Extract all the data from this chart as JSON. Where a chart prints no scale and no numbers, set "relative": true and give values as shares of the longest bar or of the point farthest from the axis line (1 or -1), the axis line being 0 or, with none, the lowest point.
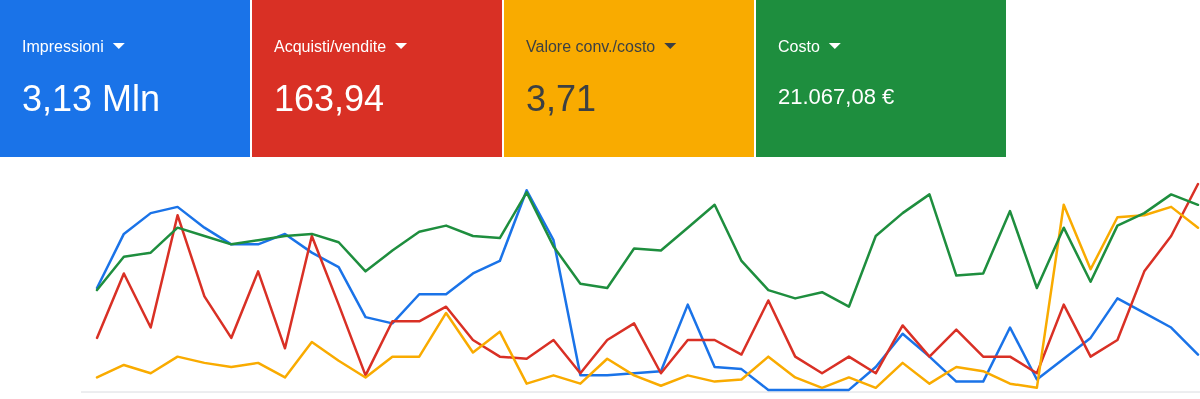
{
  "chart_data": [
    {
      "type": "other",
      "categories": [
        "Impressioni",
        "Acquisti/vendite",
        "Valore conv./costo",
        "Costo"
      ],
      "annotations": [
        "3,13 Mln",
        "163,94",
        "3,71",
        "21.067,08 €"
      ],
      "colors": [
        "#1a73e8",
        "#d93025",
        "#f9ab00",
        "#1e8e3e"
      ]
    },
    {
      "type": "line",
      "relative": true,
      "line_style": "solid",
      "marker": "none",
      "categories": [
        null,
        null,
        null,
        null,
        null,
        null,
        null,
        null,
        null,
        null,
        null,
        null,
        null,
        null,
        null,
        null,
        null,
        null,
        null,
        null,
        null,
        null,
        null,
        null,
        null,
        null,
        null,
        null,
        null,
        null,
        null,
        null,
        null,
        null,
        null,
        null,
        null,
        null,
        null,
        null,
        null,
        null
      ],
      "series": [
        {
          "color": "#1a73e8",
          "values": [
            0.5,
            0.76,
            0.86,
            0.89,
            0.79,
            0.71,
            0.71,
            0.76,
            0.67,
            0.6,
            0.36,
            0.33,
            0.47,
            0.47,
            0.57,
            0.63,
            0.97,
            0.73,
            0.08,
            0.08,
            0.09,
            0.1,
            0.42,
            0.12,
            0.11,
            0.01,
            0.01,
            0.01,
            0.01,
            0.12,
            0.28,
            0.17,
            0.05,
            0.05,
            0.31,
            0.06,
            0.16,
            0.26,
            0.45,
            0.38,
            0.31,
            0.18
          ]
        },
        {
          "color": "#d93025",
          "values": [
            0.26,
            0.57,
            0.31,
            0.85,
            0.46,
            0.26,
            0.58,
            0.21,
            0.75,
            0.42,
            0.08,
            0.34,
            0.34,
            0.41,
            0.25,
            0.17,
            0.16,
            0.25,
            0.09,
            0.25,
            0.33,
            0.09,
            0.25,
            0.25,
            0.18,
            0.44,
            0.17,
            0.09,
            0.17,
            0.09,
            0.32,
            0.17,
            0.3,
            0.17,
            0.17,
            0.09,
            0.42,
            0.17,
            0.25,
            0.58,
            0.75,
            1
          ]
        },
        {
          "color": "#f9ab00",
          "values": [
            0.07,
            0.13,
            0.09,
            0.17,
            0.14,
            0.12,
            0.14,
            0.07,
            0.24,
            0.15,
            0.07,
            0.17,
            0.17,
            0.38,
            0.19,
            0.29,
            0.04,
            0.08,
            0.04,
            0.16,
            0.08,
            0.03,
            0.08,
            0.05,
            0.06,
            0.17,
            0.07,
            0.02,
            0.07,
            0.02,
            0.14,
            0.04,
            0.12,
            0.1,
            0.04,
            0.02,
            0.9,
            0.59,
            0.84,
            0.85,
            0.89,
            0.79
          ]
        },
        {
          "color": "#1e8e3e",
          "values": [
            0.49,
            0.65,
            0.67,
            0.79,
            0.75,
            0.71,
            0.73,
            0.75,
            0.76,
            0.72,
            0.58,
            0.68,
            0.77,
            0.8,
            0.75,
            0.74,
            0.96,
            0.7,
            0.52,
            0.5,
            0.69,
            0.68,
            0.79,
            0.9,
            0.63,
            0.49,
            0.45,
            0.48,
            0.41,
            0.75,
            0.86,
            0.95,
            0.56,
            0.57,
            0.87,
            0.5,
            0.79,
            0.53,
            0.8,
            0.86,
            0.95,
            0.9
          ]
        }
      ]
    }
  ]
}
